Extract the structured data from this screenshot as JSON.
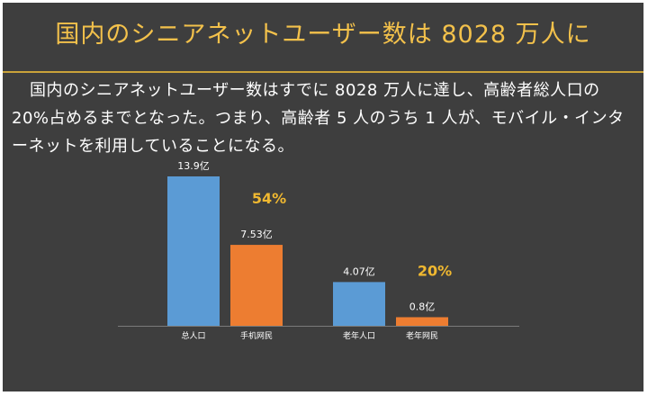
{
  "title": "国内のシニアネットユーザー数は 8028 万人に",
  "body": "国内のシニアネットユーザー数はすでに 8028 万人に達し、高齢者総人口の 20%占めるまでとなった。つまり、高齢者 5 人のうち 1 人が、モバイル・インターネットを利用していることになる。",
  "colors": {
    "background": "#3e3e3e",
    "title": "#f3c14b",
    "rule": "#c9a23a",
    "bar_blue": "#5b9bd5",
    "bar_orange": "#ed7d31",
    "percent": "#f0b830",
    "axis": "#7a7a7a"
  },
  "chart_data": {
    "type": "bar",
    "categories": [
      "总人口",
      "手机网民",
      "老年人口",
      "老年网民"
    ],
    "values": [
      13.9,
      7.53,
      4.07,
      0.8
    ],
    "value_labels": [
      "13.9亿",
      "7.53亿",
      "4.07亿",
      "0.8亿"
    ],
    "bar_colors": [
      "#5b9bd5",
      "#ed7d31",
      "#5b9bd5",
      "#ed7d31"
    ],
    "annotations": [
      {
        "text": "54%",
        "group": 0
      },
      {
        "text": "20%",
        "group": 1
      }
    ],
    "title": "",
    "xlabel": "",
    "ylabel": "",
    "ylim": [
      0,
      13.9
    ],
    "grid": false,
    "legend": "none"
  }
}
